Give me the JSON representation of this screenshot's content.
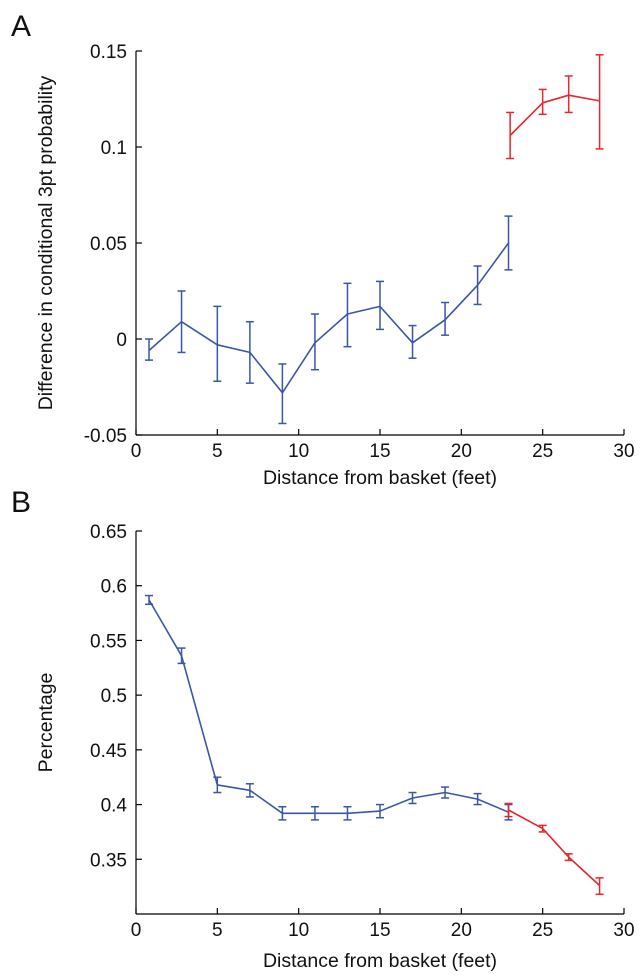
{
  "panels": {
    "a": {
      "letter": "A"
    },
    "b": {
      "letter": "B"
    }
  },
  "chart_data": [
    {
      "type": "line",
      "panel": "A",
      "xlabel": "Distance from basket (feet)",
      "ylabel": "Difference in conditional 3pt probability",
      "xlim": [
        0,
        30
      ],
      "ylim": [
        -0.05,
        0.15
      ],
      "xticks": [
        0,
        5,
        10,
        15,
        20,
        25,
        30
      ],
      "xtick_labels": [
        "0",
        "5",
        "10",
        "15",
        "20",
        "25",
        "30"
      ],
      "yticks": [
        -0.05,
        0,
        0.05,
        0.1,
        0.15
      ],
      "ytick_labels": [
        "-0.05",
        "0",
        "0.05",
        "0.1",
        "0.15"
      ],
      "grid": false,
      "series": [
        {
          "color": "#3a56a6",
          "x": [
            0.8,
            2.8,
            5.0,
            7.0,
            9.0,
            11.0,
            13.0,
            15.0,
            17.0,
            19.0,
            21.0,
            22.9
          ],
          "y": [
            -0.006,
            0.009,
            -0.003,
            -0.007,
            -0.028,
            -0.002,
            0.013,
            0.017,
            -0.002,
            0.01,
            0.028,
            0.05
          ],
          "err_low": [
            -0.011,
            -0.007,
            -0.022,
            -0.023,
            -0.044,
            -0.016,
            -0.004,
            0.005,
            -0.01,
            0.002,
            0.018,
            0.036
          ],
          "err_high": [
            0.0,
            0.025,
            0.017,
            0.009,
            -0.013,
            0.013,
            0.029,
            0.03,
            0.007,
            0.019,
            0.038,
            0.064
          ]
        },
        {
          "color": "#e8262b",
          "x": [
            23.0,
            25.0,
            26.6,
            28.5
          ],
          "y": [
            0.106,
            0.123,
            0.127,
            0.124
          ],
          "err_low": [
            0.094,
            0.117,
            0.118,
            0.099
          ],
          "err_high": [
            0.118,
            0.13,
            0.137,
            0.148
          ]
        }
      ]
    },
    {
      "type": "line",
      "panel": "B",
      "xlabel": "Distance from basket (feet)",
      "ylabel": "Percentage",
      "xlim": [
        0,
        30
      ],
      "ylim": [
        0.3,
        0.65
      ],
      "xticks": [
        0,
        5,
        10,
        15,
        20,
        25,
        30
      ],
      "xtick_labels": [
        "0",
        "5",
        "10",
        "15",
        "20",
        "25",
        "30"
      ],
      "yticks": [
        0.35,
        0.4,
        0.45,
        0.5,
        0.55,
        0.6,
        0.65
      ],
      "ytick_labels": [
        "0.35",
        "0.4",
        "0.45",
        "0.5",
        "0.55",
        "0.6",
        "0.65"
      ],
      "grid": false,
      "series": [
        {
          "color": "#3a56a6",
          "x": [
            0.8,
            2.8,
            5.0,
            7.0,
            9.0,
            11.0,
            13.0,
            15.0,
            17.0,
            19.0,
            21.0,
            22.9
          ],
          "y": [
            0.587,
            0.536,
            0.418,
            0.413,
            0.392,
            0.392,
            0.392,
            0.394,
            0.406,
            0.411,
            0.405,
            0.393
          ],
          "err_low": [
            0.583,
            0.529,
            0.411,
            0.407,
            0.386,
            0.386,
            0.386,
            0.388,
            0.401,
            0.406,
            0.4,
            0.386
          ],
          "err_high": [
            0.591,
            0.543,
            0.425,
            0.419,
            0.398,
            0.398,
            0.398,
            0.4,
            0.411,
            0.416,
            0.41,
            0.4
          ]
        },
        {
          "color": "#e8262b",
          "x": [
            22.9,
            25.0,
            26.6,
            28.5
          ],
          "y": [
            0.395,
            0.378,
            0.352,
            0.326
          ],
          "err_low": [
            0.389,
            0.375,
            0.349,
            0.318
          ],
          "err_high": [
            0.401,
            0.381,
            0.355,
            0.333
          ]
        }
      ]
    }
  ]
}
